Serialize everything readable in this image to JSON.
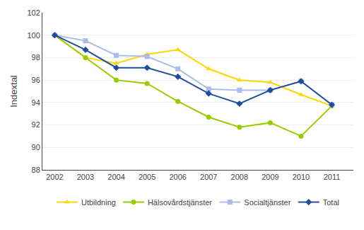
{
  "chart_data": {
    "type": "line",
    "y_label": "Indextal",
    "x": [
      2002,
      2003,
      2004,
      2005,
      2006,
      2007,
      2008,
      2009,
      2010,
      2011
    ],
    "series": [
      {
        "name": "Utbildning",
        "color": "#FFD700",
        "marker": "triangle-up",
        "values": [
          100.0,
          98.0,
          97.5,
          98.3,
          98.7,
          97.0,
          96.0,
          95.8,
          94.7,
          93.7
        ]
      },
      {
        "name": "Hälsovårdstjänster",
        "color": "#99CC00",
        "marker": "circle",
        "values": [
          100.0,
          98.0,
          96.0,
          95.7,
          94.1,
          92.7,
          91.8,
          92.2,
          91.0,
          93.7
        ]
      },
      {
        "name": "Socialtjänster",
        "color": "#AABBEE",
        "marker": "square",
        "values": [
          100.0,
          99.5,
          98.2,
          98.1,
          97.0,
          95.2,
          95.1,
          95.1,
          95.9,
          93.8
        ]
      },
      {
        "name": "Total",
        "color": "#1F4E9C",
        "marker": "diamond",
        "values": [
          100.0,
          98.7,
          97.1,
          97.1,
          96.3,
          94.8,
          93.9,
          95.1,
          95.9,
          93.8
        ]
      }
    ],
    "xlim": [
      2001.6,
      2011.7
    ],
    "xticks": [
      2002,
      2003,
      2004,
      2005,
      2006,
      2007,
      2008,
      2009,
      2010,
      2011
    ],
    "ylim": [
      88,
      102
    ],
    "yticks": [
      88,
      90,
      92,
      94,
      96,
      98,
      100,
      102
    ],
    "grid": "y",
    "legend": "bottom"
  }
}
